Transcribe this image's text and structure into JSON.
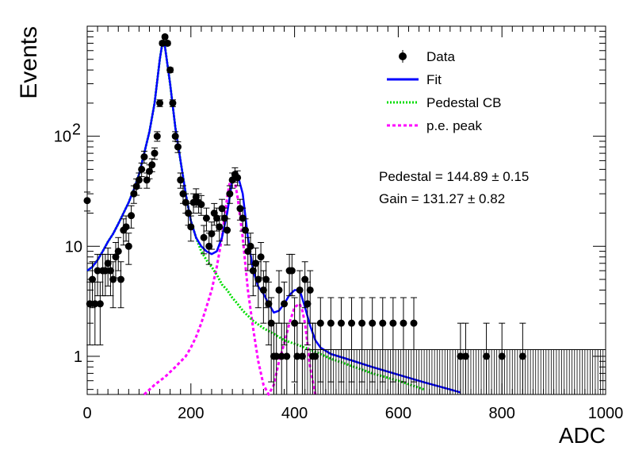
{
  "chart_data": {
    "type": "scatter",
    "title": "",
    "xlabel": "ADC",
    "ylabel": "Events",
    "xlim": [
      0,
      1000
    ],
    "ylim": [
      0.45,
      1000
    ],
    "yscale": "log",
    "x_ticks": [
      0,
      200,
      400,
      600,
      800,
      1000
    ],
    "y_ticks": [
      {
        "value": 1,
        "label": "1"
      },
      {
        "value": 10,
        "label": "10"
      },
      {
        "value": 100,
        "label": "10",
        "sup": "2"
      }
    ],
    "grid": false,
    "legend_position": "top-right",
    "legend": [
      {
        "key": "data",
        "label": "Data"
      },
      {
        "key": "fit",
        "label": "Fit"
      },
      {
        "key": "ped",
        "label": "Pedestal CB"
      },
      {
        "key": "pe",
        "label": "p.e. peak"
      }
    ],
    "annotations": [
      {
        "label": "Pedestal = 144.89",
        "pm": "±",
        "err": "0.15"
      },
      {
        "label": "Gain = 131.27",
        "pm": "±",
        "err": "0.82"
      }
    ],
    "colors": {
      "data": "#000000",
      "fit": "#0000ff",
      "ped": "#00dd00",
      "pe": "#ff00ff"
    },
    "series": [
      {
        "name": "Data",
        "kind": "points_with_errors",
        "x": [
          0,
          5,
          10,
          15,
          20,
          25,
          30,
          35,
          40,
          45,
          50,
          55,
          60,
          65,
          70,
          75,
          80,
          85,
          90,
          95,
          100,
          105,
          110,
          115,
          120,
          125,
          130,
          135,
          140,
          145,
          150,
          155,
          160,
          165,
          170,
          175,
          180,
          185,
          190,
          195,
          200,
          205,
          210,
          215,
          220,
          225,
          230,
          235,
          240,
          245,
          250,
          255,
          260,
          265,
          270,
          275,
          280,
          285,
          290,
          295,
          300,
          305,
          310,
          315,
          320,
          325,
          330,
          335,
          340,
          345,
          350,
          355,
          360,
          365,
          370,
          375,
          380,
          385,
          390,
          395,
          400,
          405,
          410,
          415,
          420,
          425,
          430,
          435,
          440,
          450,
          470,
          490,
          510,
          530,
          550,
          570,
          590,
          610,
          630,
          720,
          730,
          770,
          800,
          840
        ],
        "y": [
          26,
          3,
          5,
          3,
          6,
          3,
          6,
          6,
          7,
          6,
          5,
          8,
          9,
          5,
          14,
          15,
          10,
          19,
          30,
          35,
          40,
          50,
          65,
          40,
          48,
          55,
          70,
          100,
          200,
          700,
          800,
          700,
          400,
          200,
          100,
          80,
          40,
          30,
          25,
          20,
          15,
          25,
          28,
          25,
          24,
          12,
          18,
          10,
          13,
          20,
          18,
          15,
          22,
          18,
          14,
          30,
          40,
          45,
          42,
          22,
          18,
          14,
          9,
          10,
          6,
          7,
          5,
          8,
          4,
          5,
          3,
          2,
          1,
          1,
          4,
          1,
          3,
          1,
          6,
          6,
          2,
          1,
          4,
          1,
          5,
          3,
          4,
          1,
          1,
          2,
          2,
          2,
          2,
          2,
          2,
          2,
          2,
          2,
          2,
          1,
          1,
          1,
          1,
          1
        ]
      },
      {
        "name": "Fit",
        "kind": "line",
        "x": [
          0,
          10,
          20,
          30,
          40,
          50,
          60,
          70,
          80,
          90,
          100,
          110,
          120,
          130,
          140,
          145,
          150,
          160,
          170,
          180,
          190,
          200,
          210,
          220,
          230,
          240,
          250,
          260,
          270,
          280,
          290,
          300,
          310,
          320,
          330,
          340,
          350,
          360,
          370,
          380,
          390,
          400,
          410,
          420,
          430,
          440,
          450,
          470,
          500,
          550,
          600,
          650,
          700,
          720
        ],
        "y": [
          6,
          6.5,
          7.5,
          9,
          11,
          13,
          16,
          20,
          25,
          33,
          45,
          70,
          110,
          200,
          500,
          700,
          650,
          300,
          120,
          60,
          30,
          17,
          12,
          10,
          9,
          8.5,
          9,
          12,
          20,
          40,
          45,
          30,
          12,
          6,
          4.3,
          3.7,
          3,
          2.5,
          2.6,
          3,
          3.6,
          4,
          4,
          2.8,
          1.9,
          1.4,
          1.2,
          1.05,
          0.95,
          0.8,
          0.68,
          0.58,
          0.5,
          0.47
        ]
      },
      {
        "name": "Pedestal CB",
        "kind": "line",
        "x": [
          0,
          10,
          20,
          30,
          40,
          50,
          60,
          70,
          80,
          90,
          100,
          110,
          120,
          130,
          140,
          145,
          150,
          160,
          170,
          180,
          190,
          200,
          210,
          220,
          230,
          240,
          250,
          260,
          270,
          280,
          290,
          300,
          320,
          340,
          360,
          380,
          400,
          420,
          440,
          470,
          500,
          550,
          600,
          650
        ],
        "y": [
          6,
          6.5,
          7.5,
          9,
          11,
          13,
          16,
          20,
          25,
          33,
          45,
          70,
          110,
          200,
          500,
          700,
          650,
          300,
          120,
          60,
          30,
          17,
          12,
          9,
          7.5,
          6.5,
          5.5,
          4.5,
          4,
          3.4,
          3,
          2.6,
          2.1,
          1.8,
          1.6,
          1.4,
          1.3,
          1.2,
          1.1,
          0.95,
          0.85,
          0.7,
          0.6,
          0.5
        ]
      },
      {
        "name": "p.e. peak",
        "kind": "line",
        "x": [
          110,
          130,
          150,
          170,
          190,
          200,
          210,
          220,
          230,
          240,
          250,
          260,
          270,
          275,
          280,
          285,
          290,
          300,
          310,
          320,
          330,
          340,
          350,
          360,
          370,
          380,
          390,
          400,
          410,
          415,
          420,
          425,
          430,
          440
        ],
        "y": [
          0.45,
          0.55,
          0.65,
          0.8,
          1,
          1.2,
          1.5,
          2,
          2.8,
          4,
          6.5,
          12,
          28,
          38,
          42,
          38,
          28,
          12,
          4,
          1.8,
          0.9,
          0.55,
          0.45,
          0.55,
          0.9,
          1.3,
          2,
          2.8,
          3,
          2.6,
          2,
          1.3,
          0.8,
          0.45
        ]
      }
    ]
  }
}
